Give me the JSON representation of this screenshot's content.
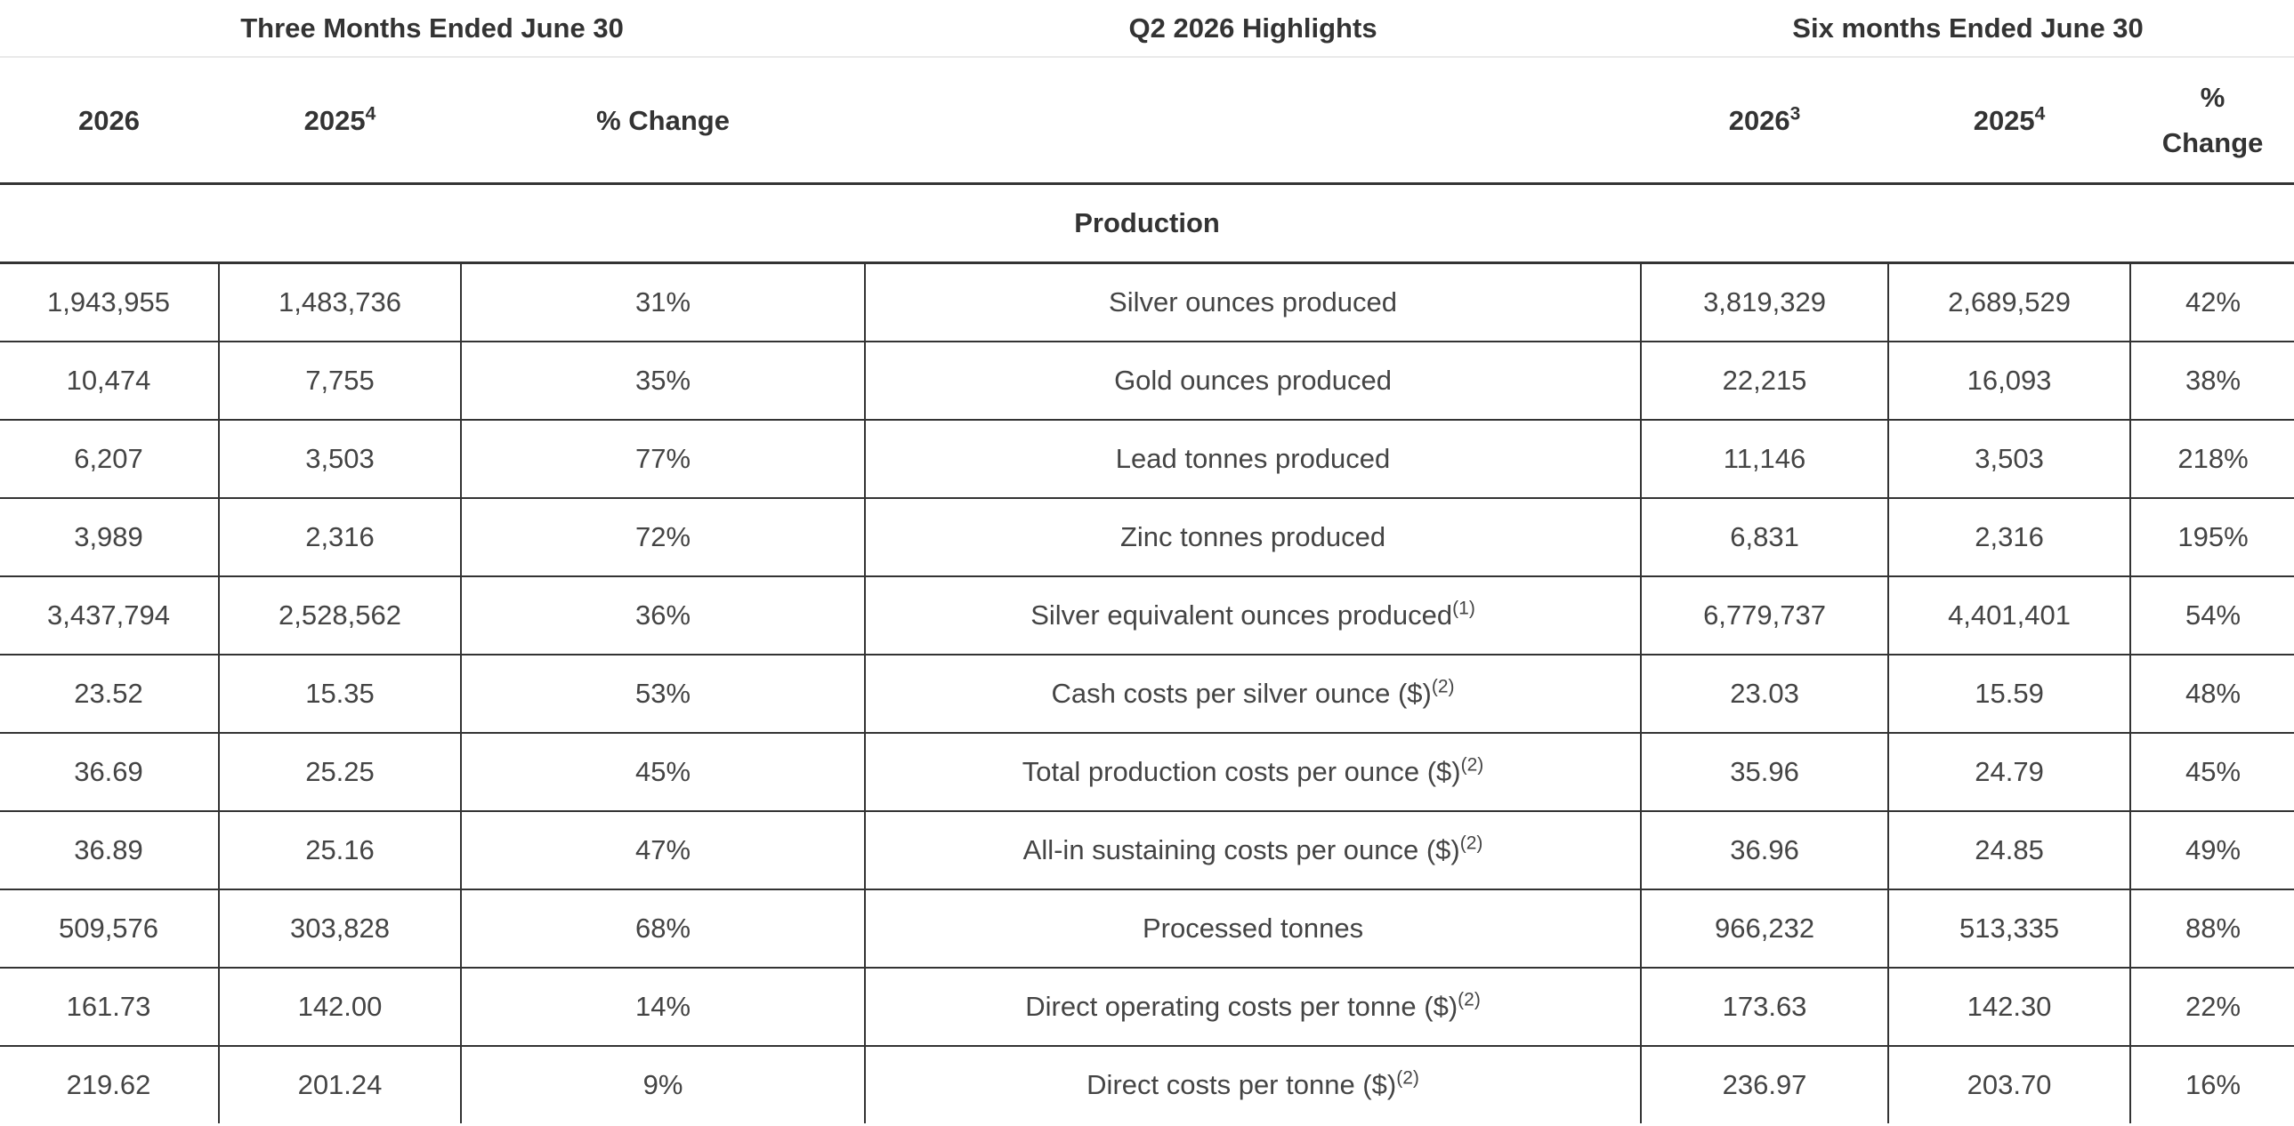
{
  "groups": {
    "three_months": "Three Months Ended June 30",
    "highlights": "Q2 2026 Highlights",
    "six_months": "Six months Ended June 30"
  },
  "columns": {
    "q_2026": "2026",
    "q_2025": "2025",
    "q_2025_note": "4",
    "q_change": "% Change",
    "h_2026": "2026",
    "h_2026_note": "3",
    "h_2025": "2025",
    "h_2025_note": "4",
    "h_change_line1": "%",
    "h_change_line2": "Change"
  },
  "section": "Production",
  "rows": [
    {
      "q2026": "1,943,955",
      "q2025": "1,483,736",
      "qchg": "31%",
      "label": "Silver ounces produced",
      "note": "",
      "h2026": "3,819,329",
      "h2025": "2,689,529",
      "hchg": "42%"
    },
    {
      "q2026": "10,474",
      "q2025": "7,755",
      "qchg": "35%",
      "label": "Gold ounces produced",
      "note": "",
      "h2026": "22,215",
      "h2025": "16,093",
      "hchg": "38%"
    },
    {
      "q2026": "6,207",
      "q2025": "3,503",
      "qchg": "77%",
      "label": "Lead tonnes produced",
      "note": "",
      "h2026": "11,146",
      "h2025": "3,503",
      "hchg": "218%"
    },
    {
      "q2026": "3,989",
      "q2025": "2,316",
      "qchg": "72%",
      "label": "Zinc tonnes produced",
      "note": "",
      "h2026": "6,831",
      "h2025": "2,316",
      "hchg": "195%"
    },
    {
      "q2026": "3,437,794",
      "q2025": "2,528,562",
      "qchg": "36%",
      "label": "Silver equivalent ounces produced",
      "note": "(1)",
      "h2026": "6,779,737",
      "h2025": "4,401,401",
      "hchg": "54%"
    },
    {
      "q2026": "23.52",
      "q2025": "15.35",
      "qchg": "53%",
      "label": "Cash costs per silver ounce ($)",
      "note": "(2)",
      "h2026": "23.03",
      "h2025": "15.59",
      "hchg": "48%"
    },
    {
      "q2026": "36.69",
      "q2025": "25.25",
      "qchg": "45%",
      "label": "Total production costs per ounce ($)",
      "note": "(2)",
      "h2026": "35.96",
      "h2025": "24.79",
      "hchg": "45%"
    },
    {
      "q2026": "36.89",
      "q2025": "25.16",
      "qchg": "47%",
      "label": "All-in sustaining costs per ounce ($)",
      "note": "(2)",
      "h2026": "36.96",
      "h2025": "24.85",
      "hchg": "49%"
    },
    {
      "q2026": "509,576",
      "q2025": "303,828",
      "qchg": "68%",
      "label": "Processed tonnes",
      "note": "",
      "h2026": "966,232",
      "h2025": "513,335",
      "hchg": "88%"
    },
    {
      "q2026": "161.73",
      "q2025": "142.00",
      "qchg": "14%",
      "label": "Direct operating costs per tonne ($)",
      "note": "(2)",
      "h2026": "173.63",
      "h2025": "142.30",
      "hchg": "22%"
    },
    {
      "q2026": "219.62",
      "q2025": "201.24",
      "qchg": "9%",
      "label": "Direct costs per tonne ($)",
      "note": "(2)",
      "h2026": "236.97",
      "h2025": "203.70",
      "hchg": "16%"
    }
  ]
}
